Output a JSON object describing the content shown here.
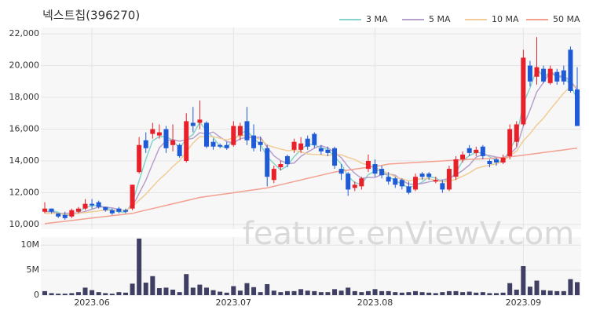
{
  "chart_data": {
    "type": "candlestick",
    "title": "넥스트칩(396270)",
    "watermark": "feature.enViewV.com",
    "categories": [
      null,
      null,
      null,
      null,
      null,
      null,
      null,
      "2023.06",
      null,
      null,
      null,
      null,
      null,
      null,
      null,
      null,
      null,
      null,
      null,
      null,
      null,
      null,
      null,
      null,
      null,
      null,
      null,
      null,
      "2023.07",
      null,
      null,
      null,
      null,
      null,
      null,
      null,
      null,
      null,
      null,
      null,
      null,
      null,
      null,
      null,
      null,
      null,
      null,
      null,
      null,
      "2023.08",
      null,
      null,
      null,
      null,
      null,
      null,
      null,
      null,
      null,
      null,
      null,
      null,
      null,
      null,
      null,
      null,
      null,
      null,
      null,
      null,
      null,
      "2023.09",
      null,
      null,
      null,
      null,
      null,
      null,
      null,
      null
    ],
    "open": [
      10800,
      11000,
      10700,
      10600,
      10500,
      10800,
      11000,
      11300,
      11400,
      11100,
      10900,
      11000,
      10900,
      11000,
      13300,
      15300,
      15700,
      15600,
      16000,
      15000,
      15000,
      14000,
      16400,
      16400,
      16400,
      15200,
      15000,
      15000,
      15000,
      15600,
      16500,
      15600,
      15200,
      14800,
      12800,
      13600,
      14300,
      14700,
      14700,
      15400,
      15700,
      14800,
      14700,
      14800,
      13500,
      13200,
      12300,
      12400,
      13500,
      13800,
      13500,
      13000,
      12900,
      12800,
      12400,
      12200,
      13200,
      13200,
      12700,
      12600,
      12200,
      13000,
      14100,
      14800,
      14500,
      14900,
      14000,
      14100,
      13900,
      14300,
      15200,
      16300,
      20000,
      19300,
      19800,
      18900,
      19600,
      19700,
      21000,
      18500
    ],
    "high": [
      11400,
      11000,
      10700,
      10800,
      11000,
      11100,
      11600,
      11600,
      11500,
      11100,
      11000,
      11100,
      11000,
      12500,
      15500,
      15800,
      16400,
      16300,
      16200,
      16300,
      15100,
      17000,
      17400,
      17800,
      16500,
      15400,
      15100,
      15200,
      16500,
      16400,
      17400,
      16300,
      15500,
      15000,
      13700,
      14000,
      14400,
      15400,
      15500,
      15600,
      15800,
      15000,
      14900,
      14900,
      13800,
      13300,
      12700,
      13000,
      14400,
      14100,
      13700,
      13300,
      13000,
      12900,
      12700,
      13200,
      13300,
      13300,
      13000,
      12800,
      13700,
      14300,
      14600,
      15000,
      14900,
      15000,
      14100,
      14200,
      14400,
      16300,
      16500,
      21000,
      20300,
      21800,
      20000,
      20000,
      19800,
      20000,
      21200,
      19900
    ],
    "low": [
      10700,
      10700,
      10400,
      10300,
      10400,
      10700,
      10900,
      11000,
      11000,
      10800,
      10600,
      10700,
      10700,
      10900,
      13200,
      14500,
      15400,
      15400,
      14500,
      14600,
      14200,
      13900,
      15800,
      16000,
      14800,
      14700,
      14800,
      14700,
      14900,
      15300,
      15000,
      14600,
      14600,
      12400,
      12600,
      13400,
      13600,
      14500,
      14500,
      14700,
      14800,
      14400,
      14300,
      13500,
      12800,
      11800,
      12100,
      12200,
      13300,
      13000,
      12900,
      12500,
      12300,
      12200,
      11900,
      12100,
      12800,
      12800,
      12600,
      12000,
      12100,
      12800,
      13900,
      14300,
      14300,
      14100,
      13600,
      13700,
      13800,
      14100,
      14900,
      16200,
      18700,
      18800,
      18900,
      18800,
      18800,
      18800,
      18300,
      16200
    ],
    "close": [
      11000,
      10800,
      10500,
      10400,
      10900,
      11000,
      11300,
      11200,
      11100,
      10900,
      10700,
      10800,
      10800,
      12500,
      15000,
      14800,
      16000,
      15800,
      14800,
      15300,
      14300,
      16500,
      16200,
      16600,
      14900,
      14900,
      14900,
      14800,
      16200,
      16200,
      15300,
      14800,
      15000,
      13000,
      13500,
      13800,
      13800,
      15200,
      15100,
      14900,
      15000,
      14600,
      14500,
      13700,
      13200,
      12200,
      12500,
      12900,
      14000,
      13200,
      13100,
      12700,
      12500,
      12400,
      12000,
      13000,
      13000,
      13000,
      12800,
      12200,
      13500,
      14100,
      14400,
      14500,
      14700,
      14300,
      13800,
      13900,
      14200,
      16000,
      16300,
      20500,
      19000,
      19900,
      19000,
      19800,
      19000,
      19000,
      18400,
      16200
    ],
    "up_color": "#e8202a",
    "down_color": "#1f5bd6",
    "series": [
      {
        "name": "3 MA",
        "color": "#86d3cb",
        "values": [
          10900,
          10900,
          10767,
          10567,
          10600,
          10767,
          11067,
          11167,
          11200,
          11067,
          10900,
          10800,
          10767,
          11367,
          12767,
          14100,
          15267,
          15533,
          15533,
          15300,
          14800,
          15367,
          15667,
          16433,
          15900,
          15467,
          14900,
          14867,
          15300,
          15733,
          15900,
          15433,
          15033,
          14267,
          13833,
          13433,
          13700,
          14267,
          14700,
          15067,
          15000,
          14833,
          14700,
          14267,
          13800,
          13033,
          12633,
          12533,
          13133,
          13367,
          13433,
          13000,
          12767,
          12533,
          12300,
          12467,
          12667,
          13000,
          12933,
          12667,
          12833,
          13267,
          14000,
          14333,
          14533,
          14500,
          14267,
          14000,
          13967,
          14700,
          15500,
          17600,
          18600,
          19800,
          19300,
          19567,
          19267,
          19267,
          18800,
          17867
        ]
      },
      {
        "name": "5 MA",
        "color": "#b6a0cc",
        "values": [
          10800,
          10800,
          10700,
          10700,
          10720,
          10720,
          10820,
          10960,
          11100,
          11100,
          11040,
          10940,
          10860,
          11140,
          11960,
          12780,
          13820,
          14820,
          15280,
          15340,
          15240,
          15340,
          15420,
          15780,
          15700,
          15820,
          15500,
          15220,
          15140,
          15400,
          15480,
          15460,
          15500,
          14860,
          14320,
          14020,
          13820,
          13860,
          14280,
          14560,
          14800,
          14960,
          14820,
          14540,
          14200,
          13640,
          13220,
          12900,
          12960,
          12960,
          13140,
          13180,
          13100,
          12780,
          12540,
          12520,
          12580,
          12680,
          12760,
          12800,
          12900,
          13120,
          13400,
          13740,
          14240,
          14400,
          14340,
          14240,
          14180,
          14440,
          14840,
          16180,
          17200,
          18340,
          18940,
          19640,
          19340,
          19340,
          19040,
          18480
        ]
      },
      {
        "name": "10 MA",
        "color": "#f2cc96",
        "values": [
          10700,
          10700,
          10700,
          10650,
          10650,
          10700,
          10750,
          10800,
          10850,
          10910,
          10880,
          10880,
          10910,
          11120,
          11530,
          11910,
          12380,
          12840,
          13210,
          13650,
          14010,
          14580,
          15120,
          15530,
          15520,
          15530,
          15420,
          15320,
          15460,
          15550,
          15650,
          15480,
          15360,
          15000,
          14860,
          14750,
          14640,
          14680,
          14570,
          14440,
          14410,
          14390,
          14340,
          14410,
          14380,
          14220,
          14090,
          13860,
          13750,
          13580,
          13390,
          13200,
          13000,
          12870,
          12750,
          12830,
          12880,
          12890,
          12770,
          12670,
          12710,
          12850,
          13040,
          13250,
          13520,
          13650,
          13730,
          13820,
          13960,
          14340,
          14620,
          15260,
          15720,
          16260,
          16690,
          17240,
          17760,
          18270,
          18690,
          18710
        ]
      },
      {
        "name": "50 MA",
        "color": "#f4a08f",
        "values": [
          10050,
          10100,
          10150,
          10200,
          10250,
          10300,
          10350,
          10400,
          10450,
          10500,
          10550,
          10600,
          10650,
          10700,
          10800,
          10900,
          11000,
          11100,
          11200,
          11300,
          11400,
          11500,
          11600,
          11700,
          11760,
          11820,
          11880,
          11940,
          12000,
          12060,
          12120,
          12180,
          12240,
          12300,
          12400,
          12500,
          12600,
          12700,
          12800,
          12900,
          13000,
          13100,
          13200,
          13300,
          13360,
          13420,
          13480,
          13540,
          13600,
          13660,
          13720,
          13800,
          13825,
          13850,
          13875,
          13900,
          13925,
          13950,
          13975,
          14000,
          14025,
          14050,
          14075,
          14100,
          14120,
          14140,
          14160,
          14180,
          14200,
          14260,
          14310,
          14360,
          14420,
          14470,
          14530,
          14580,
          14640,
          14690,
          14750,
          14800
        ]
      }
    ],
    "volume": [
      800000,
      400000,
      300000,
      300000,
      400000,
      600000,
      1500000,
      1000000,
      600000,
      400000,
      300000,
      600000,
      500000,
      2300000,
      11300000,
      2500000,
      3800000,
      1400000,
      1500000,
      1100000,
      600000,
      4200000,
      1500000,
      2100000,
      1500000,
      1000000,
      700000,
      500000,
      1800000,
      900000,
      2400000,
      1600000,
      600000,
      2200000,
      900000,
      600000,
      800000,
      800000,
      1200000,
      900000,
      800000,
      600000,
      600000,
      1200000,
      900000,
      1500000,
      800000,
      600000,
      800000,
      1200000,
      800000,
      800000,
      600000,
      500000,
      600000,
      800000,
      600000,
      500000,
      400000,
      600000,
      800000,
      800000,
      600000,
      700000,
      500000,
      600000,
      400000,
      400000,
      500000,
      2400000,
      1100000,
      5800000,
      1700000,
      2900000,
      1000000,
      900000,
      800000,
      800000,
      3200000,
      2600000
    ],
    "volume_color": "#3f3f63",
    "ylim": [
      9700,
      22400
    ],
    "yticks": [
      {
        "value": 10000,
        "label": "10,000"
      },
      {
        "value": 12000,
        "label": "12,000"
      },
      {
        "value": 14000,
        "label": "14,000"
      },
      {
        "value": 16000,
        "label": "16,000"
      },
      {
        "value": 18000,
        "label": "18,000"
      },
      {
        "value": 20000,
        "label": "20,000"
      },
      {
        "value": 22000,
        "label": "22,000"
      }
    ],
    "volume_ylim": [
      0,
      11600000
    ],
    "volume_yticks": [
      {
        "value": 0,
        "label": "0"
      },
      {
        "value": 5000000,
        "label": "5M"
      },
      {
        "value": 10000000,
        "label": "10M"
      }
    ],
    "grid": true,
    "legend": "top-right"
  }
}
